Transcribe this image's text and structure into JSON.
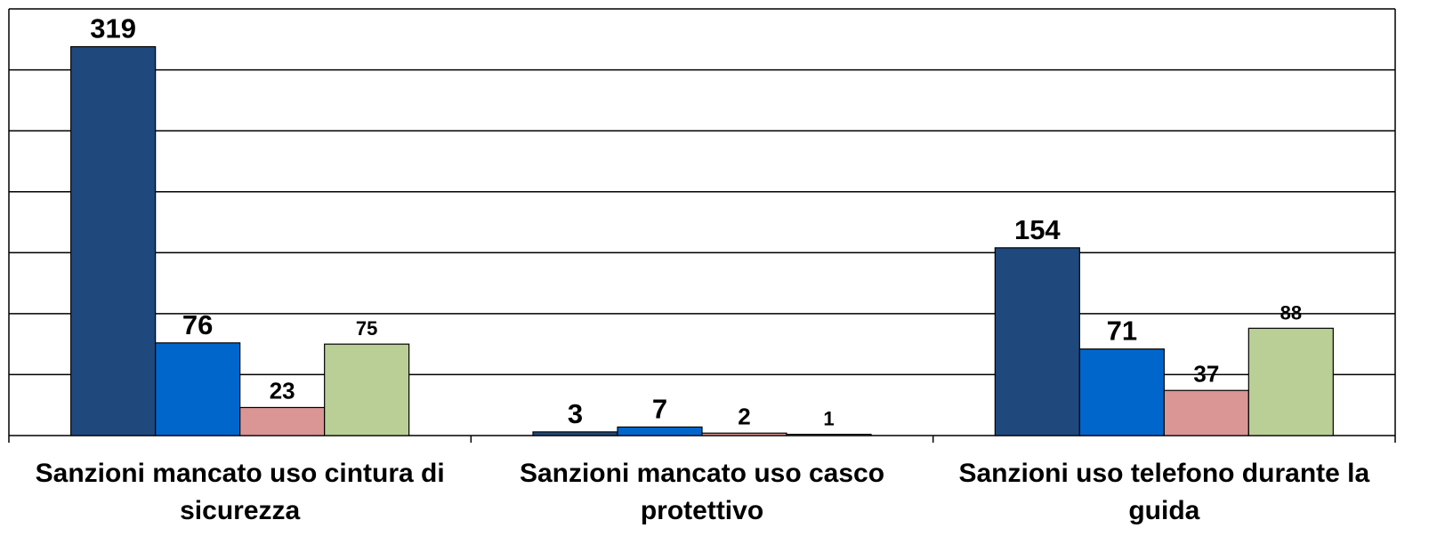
{
  "chart_data": {
    "type": "bar",
    "categories": [
      "Sanzioni mancato uso cintura di sicurezza",
      "Sanzioni mancato uso casco protettivo",
      "Sanzioni uso telefono durante la guida"
    ],
    "series": [
      {
        "color": "#1f497d",
        "values": [
          319,
          3,
          154
        ]
      },
      {
        "color": "#0066cc",
        "values": [
          76,
          7,
          71
        ]
      },
      {
        "color": "#d99694",
        "values": [
          23,
          2,
          37
        ]
      },
      {
        "color": "#b9cf96",
        "values": [
          75,
          1,
          88
        ]
      }
    ],
    "ylim": [
      0,
      350
    ],
    "yticks": [
      0,
      50,
      100,
      150,
      200,
      250,
      300,
      350
    ],
    "grid": true
  }
}
